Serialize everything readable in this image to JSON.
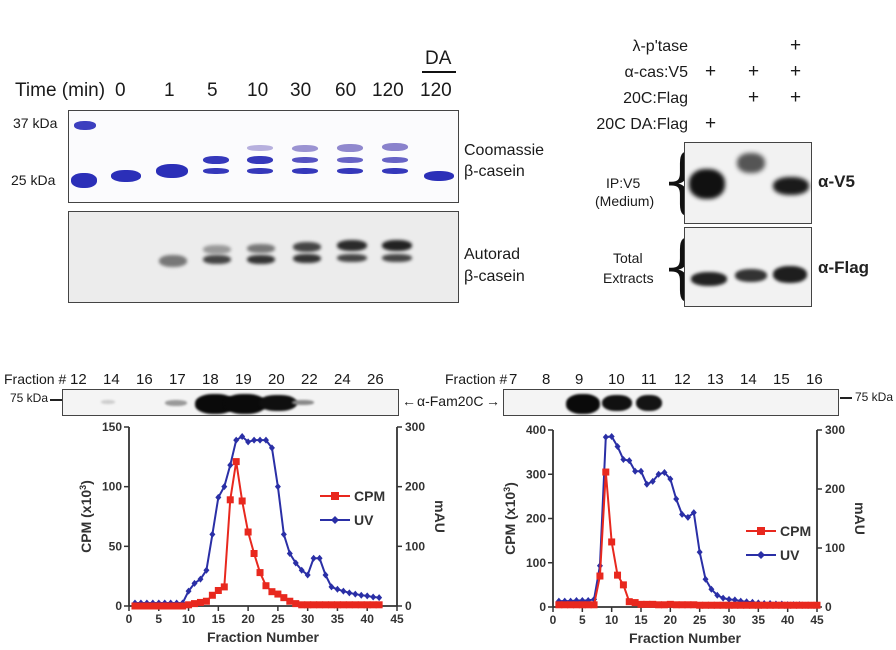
{
  "panel_a": {
    "time_label": "Time (min)",
    "time_points": [
      "0",
      "1",
      "5",
      "10",
      "30",
      "60",
      "120",
      "120"
    ],
    "da_label": "DA",
    "markers": [
      "37 kDa",
      "25 kDa"
    ],
    "coomassie_label": [
      "Coomassie",
      "β-casein"
    ],
    "autorad_label": [
      "Autorad",
      "β-casein"
    ],
    "colors": {
      "coomassie_band": "#2b2fb8",
      "coomassie_light": "#8f86c9",
      "autorad_band": "#222222"
    }
  },
  "panel_b": {
    "conditions": [
      {
        "label": "λ-p'tase",
        "lanes": [
          "",
          "",
          "+"
        ]
      },
      {
        "label": "α-cas:V5",
        "lanes": [
          "+",
          "+",
          "+"
        ]
      },
      {
        "label": "20C:Flag",
        "lanes": [
          "",
          "+",
          "+"
        ]
      },
      {
        "label": "20C DA:Flag",
        "lanes": [
          "+",
          "",
          ""
        ]
      }
    ],
    "upper_side_label": [
      "IP:V5",
      "(Medium)"
    ],
    "lower_side_label": [
      "Total",
      "Extracts"
    ],
    "upper_antibody": "α-V5",
    "lower_antibody": "α-Flag"
  },
  "panel_c": {
    "left_fraction_label": "Fraction #",
    "left_fractions": [
      "12",
      "14",
      "16",
      "17",
      "18",
      "19",
      "20",
      "22",
      "24",
      "26"
    ],
    "left_marker": "75 kDa",
    "center_label": "α-Fam20C",
    "right_fraction_label": "Fraction #",
    "right_fractions": [
      "7",
      "8",
      "9",
      "10",
      "11",
      "12",
      "13",
      "14",
      "15",
      "16"
    ],
    "right_marker": "75 kDa"
  },
  "chart_data": [
    {
      "type": "line",
      "title": "",
      "xlabel": "Fraction Number",
      "ylabel": "CPM (x10^3)",
      "ylabel_right": "mAU",
      "xlim": [
        0,
        45
      ],
      "ylim": [
        0,
        150
      ],
      "ylim_right": [
        0,
        300
      ],
      "xticks": [
        "0",
        "5",
        "10",
        "15",
        "20",
        "25",
        "30",
        "35",
        "40",
        "45"
      ],
      "yticks": [
        "0",
        "50",
        "100",
        "150"
      ],
      "yticks_right": [
        "0",
        "100",
        "200",
        "300"
      ],
      "grid": false,
      "legend": "center-right",
      "series": [
        {
          "name": "CPM",
          "axis": "left",
          "marker": "square",
          "color": "#e8281e",
          "x": [
            1,
            2,
            3,
            4,
            5,
            6,
            7,
            8,
            9,
            10,
            11,
            12,
            13,
            14,
            15,
            16,
            17,
            18,
            19,
            20,
            21,
            22,
            23,
            24,
            25,
            26,
            27,
            28,
            29,
            30,
            31,
            32,
            33,
            34,
            35,
            36,
            37,
            38,
            39,
            40,
            41,
            42
          ],
          "values": [
            0,
            0,
            0,
            0,
            0,
            0,
            0,
            0,
            0,
            1,
            2,
            3,
            4,
            9,
            13,
            16,
            89,
            121,
            88,
            62,
            44,
            28,
            17,
            12,
            10,
            7,
            4,
            2,
            1,
            1,
            1,
            1,
            1,
            1,
            1,
            1,
            1,
            1,
            1,
            1,
            1,
            1
          ]
        },
        {
          "name": "UV",
          "axis": "right",
          "marker": "diamond",
          "color": "#2a2fa6",
          "x": [
            1,
            2,
            3,
            4,
            5,
            6,
            7,
            8,
            9,
            10,
            11,
            12,
            13,
            14,
            15,
            16,
            17,
            18,
            19,
            20,
            21,
            22,
            23,
            24,
            25,
            26,
            27,
            28,
            29,
            30,
            31,
            32,
            33,
            34,
            35,
            36,
            37,
            38,
            39,
            40,
            41,
            42
          ],
          "values": [
            5,
            5,
            5,
            5,
            5,
            5,
            5,
            5,
            5,
            25,
            38,
            45,
            60,
            120,
            182,
            200,
            236,
            278,
            284,
            275,
            278,
            278,
            278,
            265,
            200,
            120,
            88,
            72,
            60,
            52,
            80,
            80,
            52,
            32,
            28,
            25,
            22,
            20,
            18,
            17,
            15,
            14
          ]
        }
      ]
    },
    {
      "type": "line",
      "title": "",
      "xlabel": "Fraction Number",
      "ylabel": "CPM (x10^3)",
      "ylabel_right": "mAU",
      "xlim": [
        0,
        45
      ],
      "ylim": [
        0,
        400
      ],
      "ylim_right": [
        0,
        300
      ],
      "xticks": [
        "0",
        "5",
        "10",
        "15",
        "20",
        "25",
        "30",
        "35",
        "40",
        "45"
      ],
      "yticks": [
        "0",
        "100",
        "200",
        "300",
        "400"
      ],
      "yticks_right": [
        "0",
        "100",
        "200",
        "300"
      ],
      "grid": false,
      "legend": "lower-right",
      "series": [
        {
          "name": "CPM",
          "axis": "left",
          "marker": "square",
          "color": "#e8281e",
          "x": [
            1,
            2,
            3,
            4,
            5,
            6,
            7,
            8,
            9,
            10,
            11,
            12,
            13,
            14,
            15,
            16,
            17,
            18,
            19,
            20,
            21,
            22,
            23,
            24,
            25,
            26,
            27,
            28,
            29,
            30,
            31,
            32,
            33,
            34,
            35,
            36,
            37,
            38,
            39,
            40,
            41,
            42,
            43,
            44,
            45
          ],
          "values": [
            5,
            5,
            5,
            5,
            5,
            5,
            5,
            70,
            305,
            147,
            72,
            50,
            12,
            10,
            6,
            6,
            6,
            5,
            5,
            6,
            5,
            5,
            5,
            5,
            4,
            4,
            4,
            4,
            4,
            4,
            4,
            4,
            4,
            4,
            4,
            4,
            4,
            4,
            4,
            4,
            4,
            4,
            4,
            4,
            4
          ]
        },
        {
          "name": "UV",
          "axis": "right",
          "marker": "diamond",
          "color": "#2a2fa6",
          "x": [
            1,
            2,
            3,
            4,
            5,
            6,
            7,
            8,
            9,
            10,
            11,
            12,
            13,
            14,
            15,
            16,
            17,
            18,
            19,
            20,
            21,
            22,
            23,
            24,
            25,
            26,
            27,
            28,
            29,
            30,
            31,
            32,
            33,
            34,
            35,
            36,
            37,
            38,
            39,
            40,
            41,
            42,
            43,
            44,
            45
          ],
          "values": [
            10,
            10,
            10,
            11,
            11,
            11,
            13,
            70,
            288,
            289,
            272,
            250,
            248,
            230,
            230,
            208,
            213,
            225,
            228,
            217,
            183,
            157,
            152,
            160,
            93,
            47,
            30,
            20,
            15,
            13,
            12,
            10,
            9,
            8,
            7,
            6,
            6,
            5,
            5,
            4,
            4,
            4,
            3,
            3,
            3
          ]
        }
      ]
    }
  ]
}
